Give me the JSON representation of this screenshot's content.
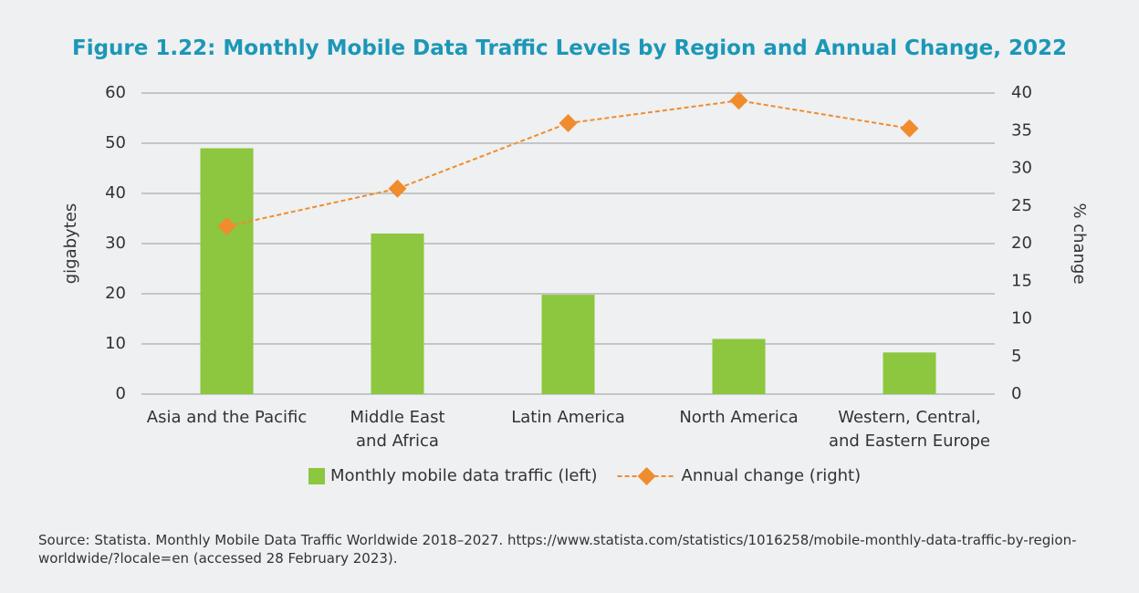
{
  "chart_data": {
    "type": "bar",
    "title": "Figure 1.22: Monthly Mobile Data Traffic Levels by Region and Annual Change, 2022",
    "categories": [
      "Asia and the Pacific",
      "Middle East\nand Africa",
      "Latin America",
      "North America",
      "Western, Central,\nand Eastern Europe"
    ],
    "series": [
      {
        "name": "Monthly mobile data traffic (left)",
        "color": "#8dc63f",
        "type": "bar",
        "values": [
          49,
          32,
          19.8,
          11,
          8.3
        ]
      },
      {
        "name": "Annual change (right)",
        "color": "#f08c2e",
        "type": "line",
        "axis": "y2",
        "values": [
          22.3,
          27.3,
          36,
          39,
          35.3
        ]
      }
    ],
    "ylabel": "gigabytes",
    "y2label": "% change",
    "ylim": [
      0,
      60
    ],
    "yticks": [
      0,
      10,
      20,
      30,
      40,
      50,
      60
    ],
    "y2lim": [
      0,
      40
    ],
    "y2ticks": [
      0,
      5,
      10,
      15,
      20,
      25,
      30,
      35,
      40
    ],
    "grid": true,
    "legend": "bottom",
    "source": "Source: Statista. Monthly Mobile Data Traffic Worldwide 2018–2027. https://www.statista.com/statistics/1016258/mobile-monthly-data-traffic-by-region-worldwide/?locale=en (accessed 28 February 2023)."
  }
}
